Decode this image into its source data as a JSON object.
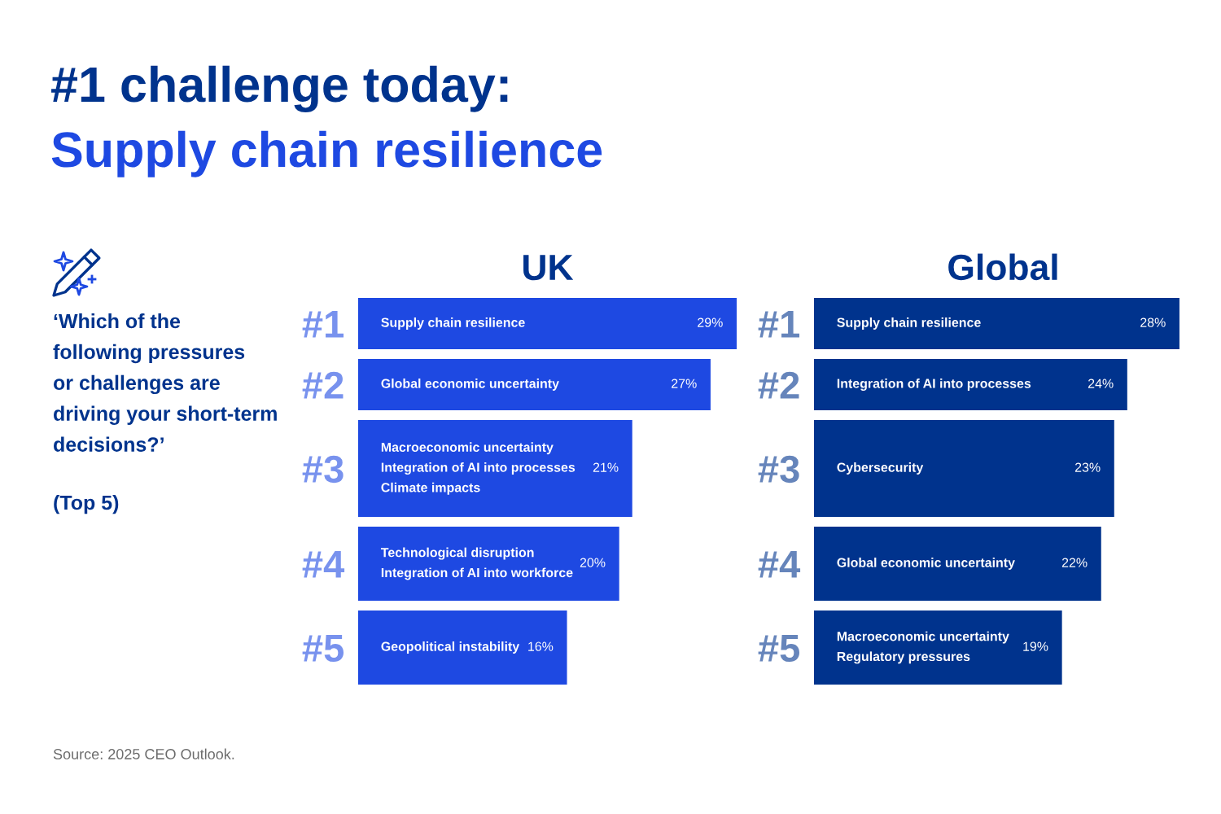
{
  "chart_data": [
    {
      "type": "other",
      "title": "#1 challenge today:",
      "subtitle": "Supply chain resilience",
      "annotations": [
        "‘Which of the\nfollowing pressures\nor challenges are\ndriving your short-term\ndecisions?’",
        "(Top 5)",
        "Source: 2025 CEO Outlook."
      ]
    },
    {
      "type": "bar",
      "orientation": "horizontal",
      "title": "UK",
      "categories": [
        "#1",
        "#2",
        "#3",
        "#4",
        "#5"
      ],
      "values": [
        29,
        27,
        21,
        20,
        16
      ],
      "value_labels": [
        "29%",
        "27%",
        "21%",
        "20%",
        "16%"
      ],
      "color": "#1e49e2",
      "tick_labels": "y",
      "annotations": [
        "Supply chain resilience",
        "Global economic uncertainty",
        "Macroeconomic uncertainty\nIntegration of AI into processes\nClimate impacts",
        "Technological disruption\nIntegration of AI into workforce",
        "Geopolitical instability"
      ]
    },
    {
      "type": "bar",
      "orientation": "horizontal",
      "title": "Global",
      "categories": [
        "#1",
        "#2",
        "#3",
        "#4",
        "#5"
      ],
      "values": [
        28,
        24,
        23,
        22,
        19
      ],
      "value_labels": [
        "28%",
        "24%",
        "23%",
        "22%",
        "19%"
      ],
      "color": "#00338d",
      "tick_labels": "y",
      "annotations": [
        "Supply chain resilience",
        "Integration of AI into processes",
        "Cybersecurity",
        "Global economic uncertainty",
        "Macroeconomic uncertainty\nRegulatory pressures"
      ]
    }
  ]
}
